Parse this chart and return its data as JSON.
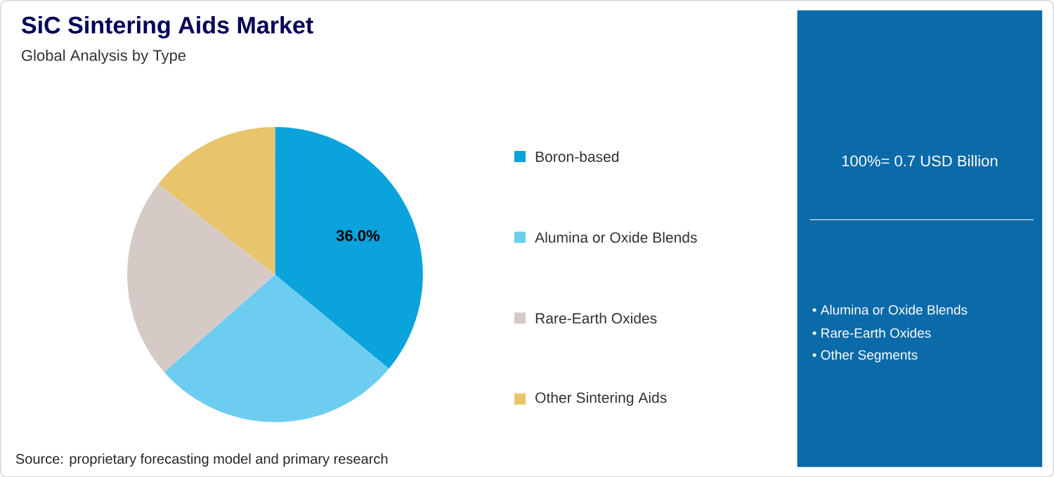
{
  "chart_data": {
    "type": "pie",
    "title": "SiC Sintering Aids Market",
    "subtitle": "Global Analysis by Type",
    "categories": [
      "Boron-based",
      "Alumina or Oxide Blends",
      "Rare-Earth Oxides",
      "Other Sintering Aids"
    ],
    "values": [
      36.0,
      27.5,
      22.0,
      14.5
    ],
    "colors": [
      "#0aa3dc",
      "#6ccdf0",
      "#d5cac6",
      "#e8c56c"
    ],
    "value_labels": [
      "36.0%",
      null,
      null,
      null
    ],
    "legend": "right",
    "annotations": [
      "100%= 0.7 USD Billion",
      "• Alumina or Oxide Blends",
      "• Rare-Earth Oxides",
      "• Other Segments",
      "Source: proprietary forecasting model and primary research"
    ]
  }
}
